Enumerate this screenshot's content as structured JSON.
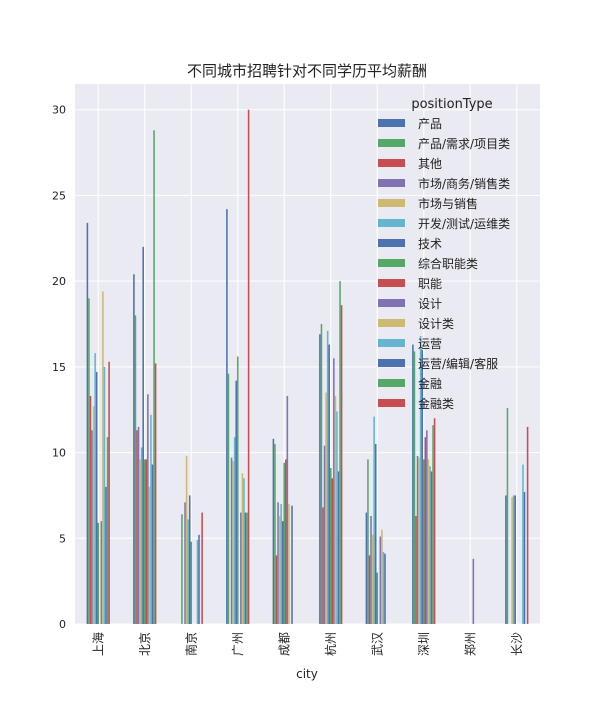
{
  "chart_data": {
    "type": "bar",
    "title": "不同城市招聘针对不同学历平均薪酬",
    "xlabel": "city",
    "ylabel": "",
    "ylim": [
      0,
      31.5
    ],
    "yticks": [
      0,
      5,
      10,
      15,
      20,
      25,
      30
    ],
    "grid": true,
    "legend_title": "positionType",
    "legend_position": "top-right",
    "categories": [
      "上海",
      "北京",
      "南京",
      "广州",
      "成都",
      "杭州",
      "武汉",
      "深圳",
      "郑州",
      "长沙"
    ],
    "series": [
      {
        "name": "产品",
        "color": "#4C72B0",
        "values": [
          23.4,
          20.4,
          null,
          24.2,
          10.8,
          16.9,
          6.5,
          16.3,
          null,
          7.5
        ]
      },
      {
        "name": "产品/需求/项目类",
        "color": "#55A868",
        "values": [
          19.0,
          18.0,
          6.4,
          14.6,
          10.5,
          17.5,
          9.6,
          15.9,
          null,
          12.6
        ]
      },
      {
        "name": "其他",
        "color": "#C44E52",
        "values": [
          13.3,
          11.3,
          null,
          null,
          4.0,
          6.8,
          4.0,
          6.3,
          null,
          null
        ]
      },
      {
        "name": "市场/商务/销售类",
        "color": "#8172B2",
        "values": [
          11.3,
          11.5,
          7.1,
          9.7,
          7.1,
          10.4,
          6.3,
          9.8,
          null,
          null
        ]
      },
      {
        "name": "市场与销售",
        "color": "#CCB974",
        "values": [
          12.7,
          9.6,
          9.8,
          9.5,
          6.3,
          13.5,
          5.2,
          9.7,
          null,
          7.4
        ]
      },
      {
        "name": "开发/测试/运维类",
        "color": "#64B5CD",
        "values": [
          15.8,
          10.3,
          6.1,
          10.9,
          7.0,
          17.1,
          12.1,
          16.8,
          null,
          7.5
        ]
      },
      {
        "name": "技术",
        "color": "#4C72B0",
        "values": [
          14.7,
          22.0,
          7.5,
          14.2,
          6.0,
          16.3,
          10.5,
          16.0,
          null,
          7.5
        ]
      },
      {
        "name": "综合职能类",
        "color": "#55A868",
        "values": [
          5.9,
          9.6,
          4.8,
          15.6,
          9.4,
          9.1,
          3.0,
          9.6,
          null,
          null
        ]
      },
      {
        "name": "职能",
        "color": "#C44E52",
        "values": [
          null,
          9.6,
          null,
          null,
          9.6,
          8.5,
          null,
          10.9,
          null,
          null
        ]
      },
      {
        "name": "设计",
        "color": "#8172B2",
        "values": [
          6.0,
          13.4,
          null,
          6.5,
          13.3,
          15.5,
          5.1,
          11.3,
          3.8,
          null
        ]
      },
      {
        "name": "设计类",
        "color": "#CCB974",
        "values": [
          19.4,
          8.0,
          null,
          8.8,
          7.0,
          13.3,
          5.5,
          9.6,
          null,
          null
        ]
      },
      {
        "name": "运营",
        "color": "#64B5CD",
        "values": [
          15.0,
          12.2,
          4.9,
          8.5,
          null,
          12.4,
          4.2,
          9.2,
          null,
          9.3
        ]
      },
      {
        "name": "运营/编辑/客服",
        "color": "#4C72B0",
        "values": [
          8.0,
          9.3,
          5.2,
          6.5,
          6.9,
          8.9,
          4.1,
          8.9,
          null,
          7.7
        ]
      },
      {
        "name": "金融",
        "color": "#55A868",
        "values": [
          10.9,
          28.8,
          null,
          6.5,
          null,
          20.0,
          null,
          11.6,
          null,
          null
        ]
      },
      {
        "name": "金融类",
        "color": "#C44E52",
        "values": [
          15.3,
          15.2,
          6.5,
          30.0,
          null,
          18.6,
          null,
          12.0,
          null,
          11.5
        ]
      }
    ]
  }
}
